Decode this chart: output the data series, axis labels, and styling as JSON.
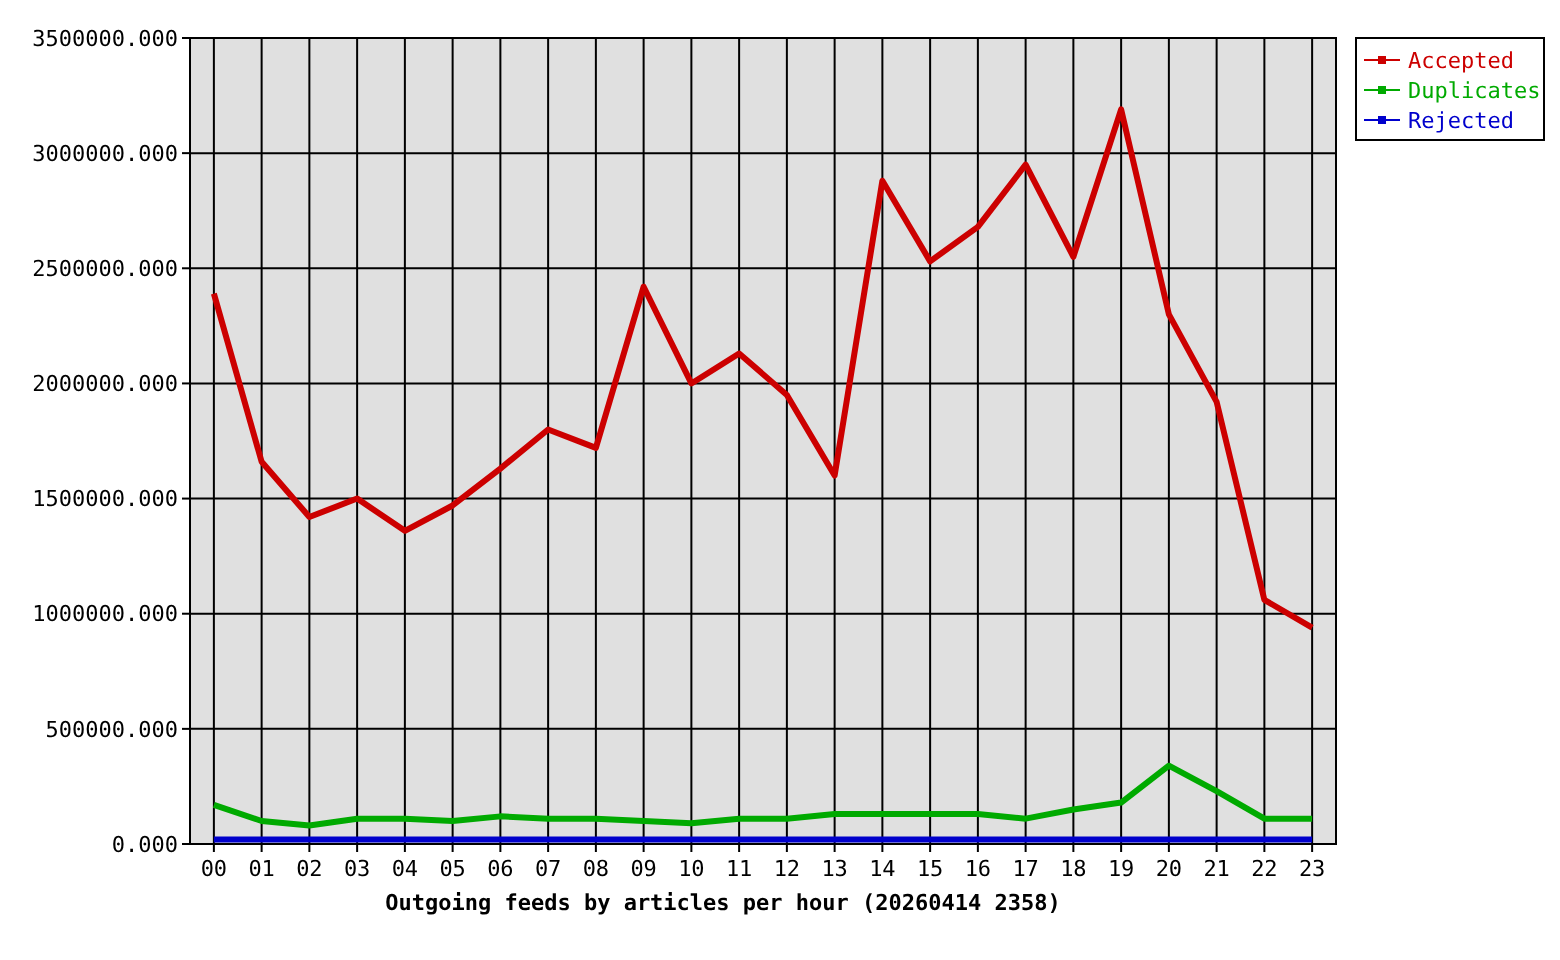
{
  "chart_data": {
    "type": "line",
    "xlabel": "Outgoing feeds by articles per hour (20260414 2358)",
    "categories": [
      "00",
      "01",
      "02",
      "03",
      "04",
      "05",
      "06",
      "07",
      "08",
      "09",
      "10",
      "11",
      "12",
      "13",
      "14",
      "15",
      "16",
      "17",
      "18",
      "19",
      "20",
      "21",
      "22",
      "23"
    ],
    "series": [
      {
        "name": "Accepted",
        "color": "#cc0000",
        "values": [
          2390000,
          1660000,
          1420000,
          1500000,
          1360000,
          1470000,
          1630000,
          1800000,
          1720000,
          2420000,
          2000000,
          2130000,
          1950000,
          1600000,
          2880000,
          2530000,
          2680000,
          2950000,
          2550000,
          3190000,
          2300000,
          1920000,
          1060000,
          940000
        ]
      },
      {
        "name": "Duplicates",
        "color": "#00aa00",
        "values": [
          170000,
          100000,
          80000,
          110000,
          110000,
          100000,
          120000,
          110000,
          110000,
          100000,
          90000,
          110000,
          110000,
          130000,
          130000,
          130000,
          130000,
          110000,
          150000,
          180000,
          340000,
          230000,
          110000,
          110000
        ]
      },
      {
        "name": "Rejected",
        "color": "#0000cc",
        "values": [
          20000,
          20000,
          20000,
          20000,
          20000,
          20000,
          20000,
          20000,
          20000,
          20000,
          20000,
          20000,
          20000,
          20000,
          20000,
          20000,
          20000,
          20000,
          20000,
          20000,
          20000,
          20000,
          20000,
          20000
        ]
      }
    ],
    "ylim": [
      0,
      3500000
    ],
    "yticks": [
      {
        "value": 0,
        "label": "0.000"
      },
      {
        "value": 500000,
        "label": "500000.000"
      },
      {
        "value": 1000000,
        "label": "1000000.000"
      },
      {
        "value": 1500000,
        "label": "1500000.000"
      },
      {
        "value": 2000000,
        "label": "2000000.000"
      },
      {
        "value": 2500000,
        "label": "2500000.000"
      },
      {
        "value": 3000000,
        "label": "3000000.000"
      },
      {
        "value": 3500000,
        "label": "3500000.000"
      }
    ],
    "grid": true,
    "legend": "top right",
    "line_style": "solid"
  }
}
